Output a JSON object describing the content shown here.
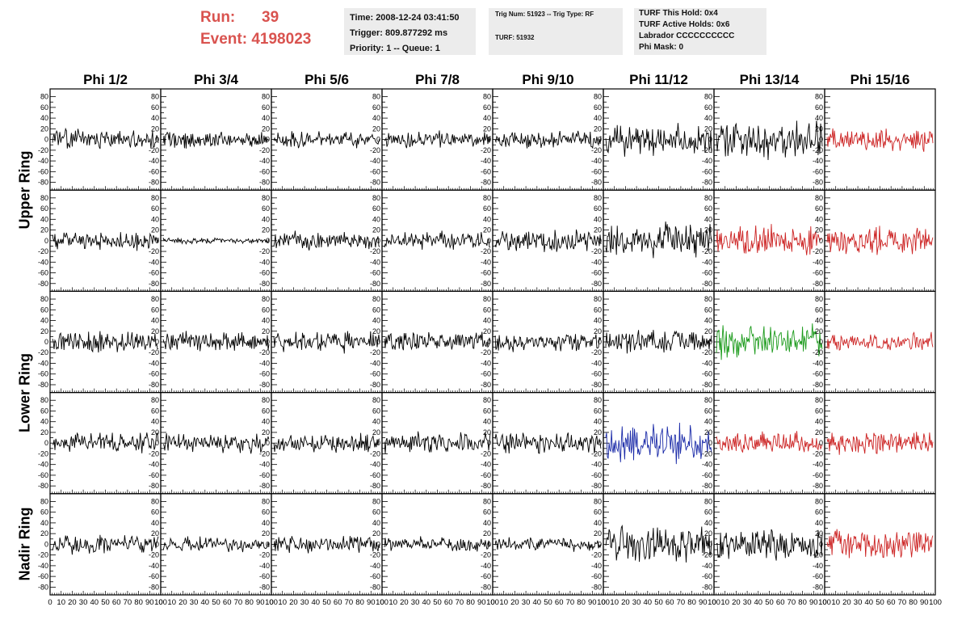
{
  "header": {
    "run_label": "Run:",
    "run_value": "39",
    "event_label": "Event:",
    "event_value": "4198023",
    "time": "Time: 2008-12-24 03:41:50",
    "trigger": "Trigger: 809.877292 ms",
    "priority": "Priority: 1 -- Queue: 1",
    "trig_num": "Trig Num: 51923 -- Trig Type: RF",
    "turf": "TURF: 51932",
    "turf_this_hold": "TURF This Hold: 0x4",
    "turf_active_holds": "TURF Active Holds: 0x6",
    "labrador": "Labrador CCCCCCCCCC",
    "phi_mask": "Phi Mask: 0"
  },
  "row_labels": [
    {
      "text": "Upper Ring",
      "rows": [
        0,
        1
      ]
    },
    {
      "text": "Lower Ring",
      "rows": [
        2,
        3
      ]
    },
    {
      "text": "Nadir Ring",
      "rows": [
        4,
        4
      ]
    }
  ],
  "colors": {
    "black": "#000000",
    "red": "#cc2222",
    "green": "#1a9a1a",
    "blue": "#1a2aa8",
    "run_text": "#d9534f"
  },
  "chart_data": {
    "type": "line",
    "columns": [
      "Phi 1/2",
      "Phi 3/4",
      "Phi 5/6",
      "Phi 7/8",
      "Phi 9/10",
      "Phi 11/12",
      "Phi 13/14",
      "Phi 15/16"
    ],
    "x_ticks": [
      "0",
      "10",
      "20",
      "30",
      "40",
      "50",
      "60",
      "70",
      "80",
      "90",
      "100"
    ],
    "y_ticks": [
      "-80",
      "-60",
      "-40",
      "-20",
      "0",
      "20",
      "40",
      "60",
      "80"
    ],
    "xlim": [
      0,
      100
    ],
    "ylim": [
      -90,
      90
    ],
    "grid": false,
    "panels": [
      [
        {
          "color": "black",
          "amp": 14,
          "seed": 11
        },
        {
          "color": "black",
          "amp": 12,
          "seed": 12
        },
        {
          "color": "black",
          "amp": 12,
          "seed": 13
        },
        {
          "color": "black",
          "amp": 12,
          "seed": 14
        },
        {
          "color": "black",
          "amp": 13,
          "seed": 15
        },
        {
          "color": "black",
          "amp": 24,
          "seed": 16
        },
        {
          "color": "black",
          "amp": 30,
          "seed": 17
        },
        {
          "color": "red",
          "amp": 16,
          "seed": 18
        }
      ],
      [
        {
          "color": "black",
          "amp": 13,
          "seed": 21
        },
        {
          "color": "black",
          "amp": 4,
          "seed": 22
        },
        {
          "color": "black",
          "amp": 13,
          "seed": 23
        },
        {
          "color": "black",
          "amp": 13,
          "seed": 24
        },
        {
          "color": "black",
          "amp": 17,
          "seed": 25
        },
        {
          "color": "black",
          "amp": 24,
          "seed": 26
        },
        {
          "color": "red",
          "amp": 21,
          "seed": 27
        },
        {
          "color": "red",
          "amp": 20,
          "seed": 28
        }
      ],
      [
        {
          "color": "black",
          "amp": 15,
          "seed": 31
        },
        {
          "color": "black",
          "amp": 14,
          "seed": 32
        },
        {
          "color": "black",
          "amp": 15,
          "seed": 33
        },
        {
          "color": "black",
          "amp": 13,
          "seed": 34
        },
        {
          "color": "black",
          "amp": 13,
          "seed": 35
        },
        {
          "color": "black",
          "amp": 17,
          "seed": 36
        },
        {
          "color": "green",
          "amp": 26,
          "seed": 37
        },
        {
          "color": "red",
          "amp": 13,
          "seed": 38
        }
      ],
      [
        {
          "color": "black",
          "amp": 15,
          "seed": 41
        },
        {
          "color": "black",
          "amp": 14,
          "seed": 42
        },
        {
          "color": "black",
          "amp": 15,
          "seed": 43
        },
        {
          "color": "black",
          "amp": 15,
          "seed": 44
        },
        {
          "color": "black",
          "amp": 16,
          "seed": 45
        },
        {
          "color": "blue",
          "amp": 28,
          "seed": 46
        },
        {
          "color": "red",
          "amp": 16,
          "seed": 47
        },
        {
          "color": "red",
          "amp": 16,
          "seed": 48
        }
      ],
      [
        {
          "color": "black",
          "amp": 14,
          "seed": 51
        },
        {
          "color": "black",
          "amp": 11,
          "seed": 52
        },
        {
          "color": "black",
          "amp": 12,
          "seed": 53
        },
        {
          "color": "black",
          "amp": 11,
          "seed": 54
        },
        {
          "color": "black",
          "amp": 10,
          "seed": 55
        },
        {
          "color": "black",
          "amp": 25,
          "seed": 56
        },
        {
          "color": "black",
          "amp": 25,
          "seed": 57
        },
        {
          "color": "red",
          "amp": 20,
          "seed": 58
        }
      ]
    ]
  }
}
